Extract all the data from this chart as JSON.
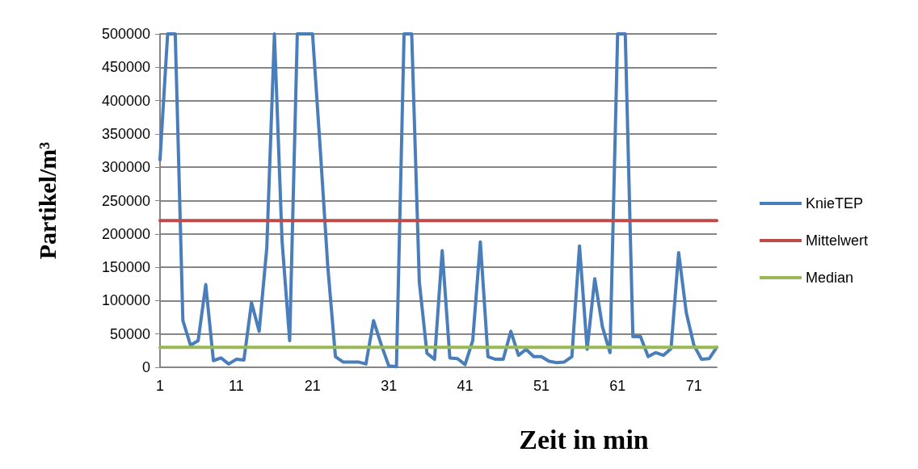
{
  "chart_data": {
    "type": "line",
    "xlabel": "Zeit in min",
    "ylabel": "Partikel/m³",
    "categories": [
      "1",
      null,
      null,
      null,
      null,
      null,
      null,
      null,
      null,
      null,
      "11",
      null,
      null,
      null,
      null,
      null,
      null,
      null,
      null,
      null,
      "21",
      null,
      null,
      null,
      null,
      null,
      null,
      null,
      null,
      null,
      "31",
      null,
      null,
      null,
      null,
      null,
      null,
      null,
      null,
      null,
      "41",
      null,
      null,
      null,
      null,
      null,
      null,
      null,
      null,
      null,
      "51",
      null,
      null,
      null,
      null,
      null,
      null,
      null,
      null,
      null,
      "61",
      null,
      null,
      null,
      null,
      null,
      null,
      null,
      null,
      null,
      "71",
      null,
      null,
      null
    ],
    "series": [
      {
        "name": "KnieTEP",
        "color": "#4a7ebb",
        "values": [
          311000,
          500000,
          500000,
          70000,
          33000,
          40000,
          124000,
          10000,
          14000,
          5000,
          12000,
          11000,
          97000,
          54000,
          179000,
          500000,
          190000,
          40000,
          500000,
          500000,
          500000,
          329000,
          151000,
          16000,
          8000,
          8000,
          8000,
          5000,
          70000,
          34000,
          2000,
          1000,
          500000,
          500000,
          128000,
          21000,
          12000,
          175000,
          14000,
          13000,
          4000,
          40000,
          188000,
          16000,
          12000,
          12000,
          54000,
          18000,
          27000,
          16000,
          16000,
          9000,
          7000,
          8000,
          16000,
          182000,
          27000,
          133000,
          61000,
          22000,
          500000,
          500000,
          46000,
          46000,
          16000,
          22000,
          18000,
          28000,
          172000,
          82000,
          33000,
          12000,
          13000,
          30000
        ]
      },
      {
        "name": "Mittelwert",
        "color": "#be4b48",
        "values": [
          220000,
          220000,
          220000,
          220000,
          220000,
          220000,
          220000,
          220000,
          220000,
          220000,
          220000,
          220000,
          220000,
          220000,
          220000,
          220000,
          220000,
          220000,
          220000,
          220000,
          220000,
          220000,
          220000,
          220000,
          220000,
          220000,
          220000,
          220000,
          220000,
          220000,
          220000,
          220000,
          220000,
          220000,
          220000,
          220000,
          220000,
          220000,
          220000,
          220000,
          220000,
          220000,
          220000,
          220000,
          220000,
          220000,
          220000,
          220000,
          220000,
          220000,
          220000,
          220000,
          220000,
          220000,
          220000,
          220000,
          220000,
          220000,
          220000,
          220000,
          220000,
          220000,
          220000,
          220000,
          220000,
          220000,
          220000,
          220000,
          220000,
          220000,
          220000,
          220000,
          220000,
          220000
        ]
      },
      {
        "name": "Median",
        "color": "#98b954",
        "values": [
          30000,
          30000,
          30000,
          30000,
          30000,
          30000,
          30000,
          30000,
          30000,
          30000,
          30000,
          30000,
          30000,
          30000,
          30000,
          30000,
          30000,
          30000,
          30000,
          30000,
          30000,
          30000,
          30000,
          30000,
          30000,
          30000,
          30000,
          30000,
          30000,
          30000,
          30000,
          30000,
          30000,
          30000,
          30000,
          30000,
          30000,
          30000,
          30000,
          30000,
          30000,
          30000,
          30000,
          30000,
          30000,
          30000,
          30000,
          30000,
          30000,
          30000,
          30000,
          30000,
          30000,
          30000,
          30000,
          30000,
          30000,
          30000,
          30000,
          30000,
          30000,
          30000,
          30000,
          30000,
          30000,
          30000,
          30000,
          30000,
          30000,
          30000,
          30000,
          30000,
          30000,
          30000
        ]
      }
    ],
    "ylim": [
      0,
      500000
    ],
    "yticks": [
      0,
      50000,
      100000,
      150000,
      200000,
      250000,
      300000,
      350000,
      400000,
      450000,
      500000
    ],
    "grid": "y",
    "legend": "right",
    "marker": "none",
    "line_style": "solid"
  }
}
